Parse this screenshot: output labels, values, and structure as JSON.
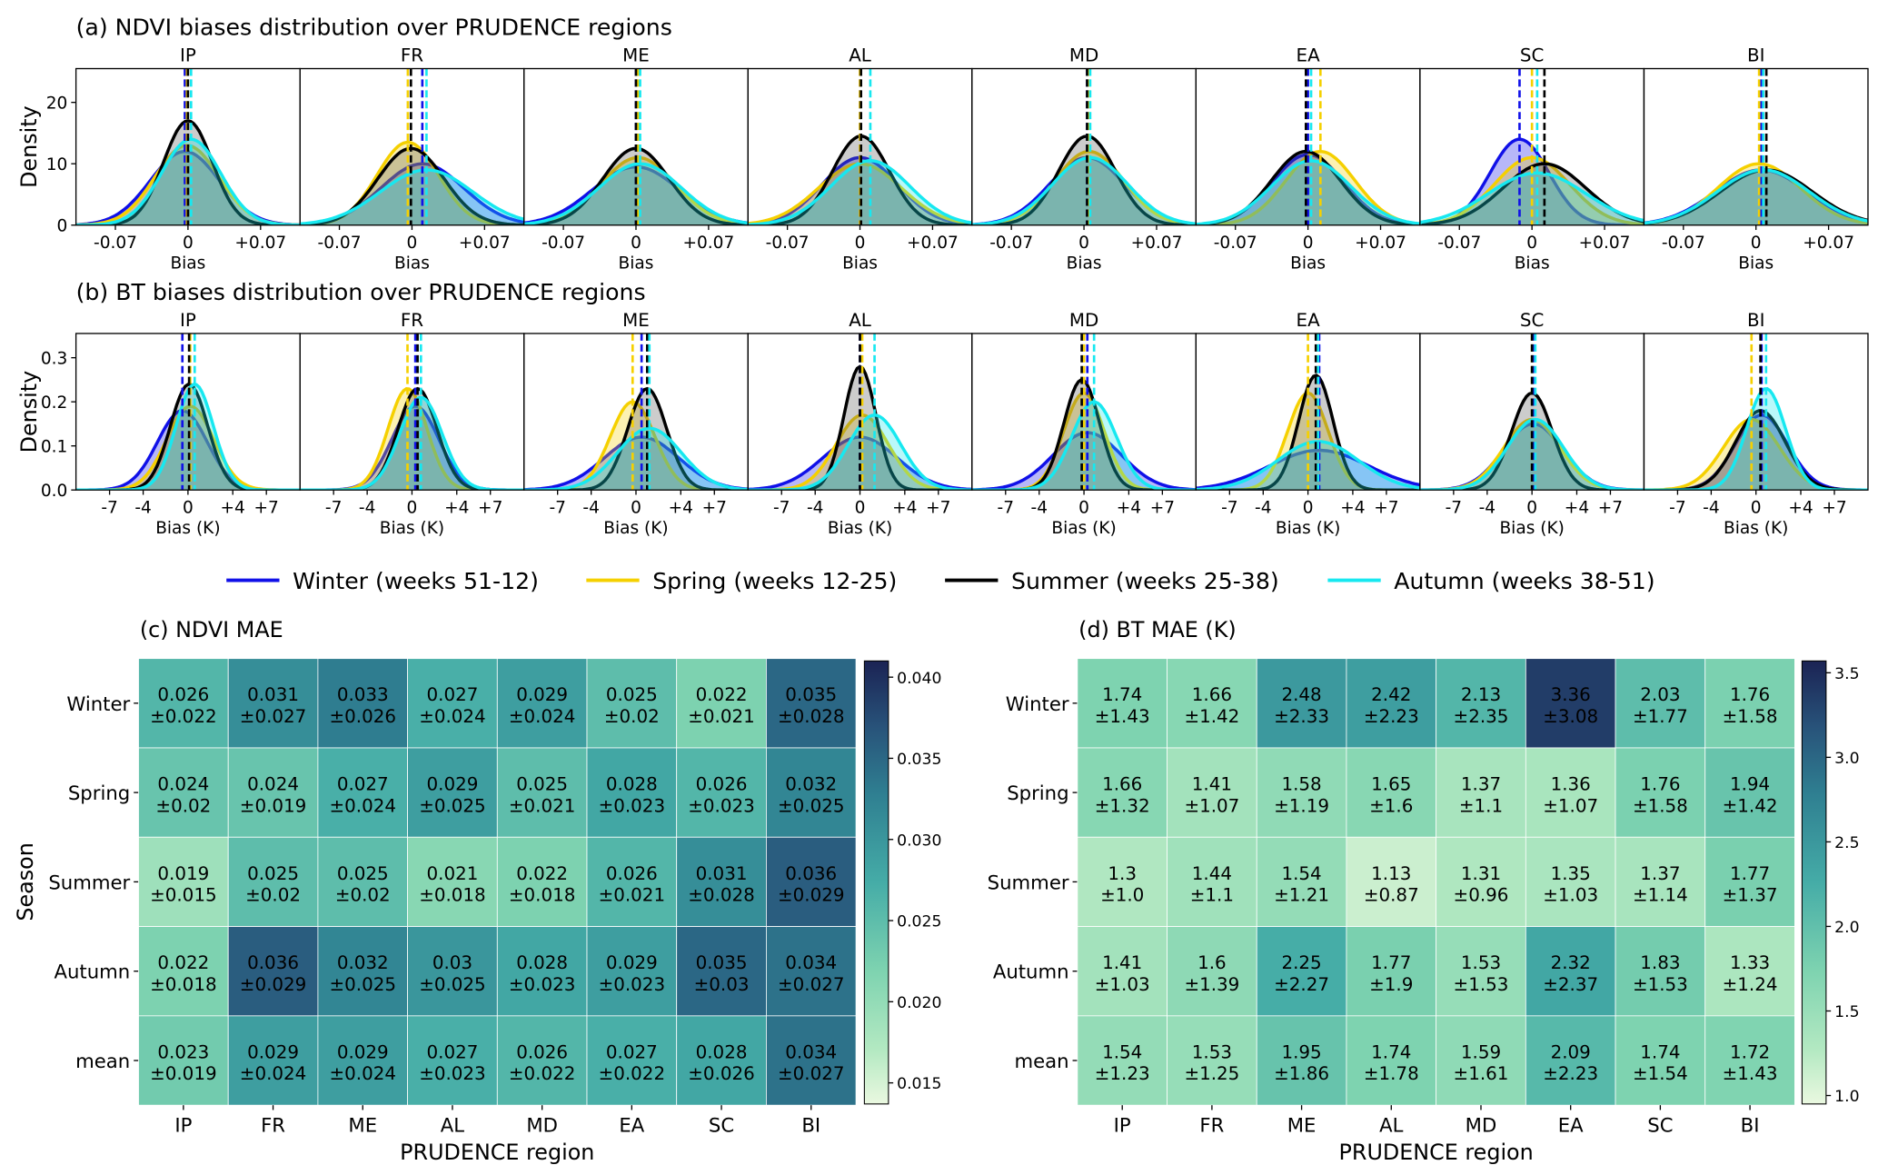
{
  "legend": [
    {
      "label": "Winter (weeks 51-12)",
      "color": "#1010e8"
    },
    {
      "label": "Spring (weeks 12-25)",
      "color": "#f5d000"
    },
    {
      "label": "Summer (weeks 25-38)",
      "color": "#000000"
    },
    {
      "label": "Autumn (weeks 38-51)",
      "color": "#17e8f0"
    }
  ],
  "chart_data": [
    {
      "type": "area",
      "title": "(a) NDVI biases distribution over PRUDENCE regions",
      "xlabel": "Bias",
      "ylabel": "Density",
      "xlim": [
        -0.108,
        0.108
      ],
      "ylim": [
        0,
        25.5
      ],
      "xticks": [
        -0.07,
        0,
        0.07
      ],
      "xtick_labels": [
        "-0.07",
        "0",
        "+0.07"
      ],
      "yticks": [
        0,
        10,
        20
      ],
      "ytick_labels": [
        "0",
        "10",
        "20"
      ],
      "regions": [
        "IP",
        "FR",
        "ME",
        "AL",
        "MD",
        "EA",
        "SC",
        "BI"
      ],
      "series": [
        {
          "name": "Winter",
          "mean": [
            -0.003,
            0.01,
            0.0,
            0.0,
            0.003,
            0.0,
            -0.012,
            0.005
          ],
          "peak": [
            12,
            10,
            9.5,
            11,
            11,
            11.5,
            14,
            9
          ]
        },
        {
          "name": "Spring",
          "mean": [
            -0.001,
            -0.004,
            0.002,
            0.0,
            0.005,
            0.012,
            0.0,
            0.003
          ],
          "peak": [
            13,
            13.5,
            11,
            10,
            12,
            12,
            11,
            10
          ]
        },
        {
          "name": "Summer",
          "mean": [
            0.0,
            -0.001,
            0.0,
            0.001,
            0.003,
            -0.002,
            0.012,
            0.01
          ],
          "peak": [
            17,
            12.5,
            12.5,
            14.5,
            14.5,
            12,
            10,
            9
          ]
        },
        {
          "name": "Autumn",
          "mean": [
            0.003,
            0.014,
            0.004,
            0.01,
            0.006,
            0.003,
            0.005,
            0.007
          ],
          "peak": [
            14,
            9,
            10,
            10.5,
            11,
            10.5,
            8.5,
            9
          ]
        }
      ]
    },
    {
      "type": "area",
      "title": "(b) BT biases distribution over PRUDENCE regions",
      "xlabel": "Bias (K)",
      "ylabel": "Density",
      "xlim": [
        -10,
        10
      ],
      "ylim": [
        0,
        0.355
      ],
      "xticks": [
        -7,
        -4,
        0,
        4,
        7
      ],
      "xtick_labels": [
        "-7",
        "-4",
        "0",
        "+4",
        "+7"
      ],
      "yticks": [
        0,
        0.1,
        0.2,
        0.3
      ],
      "ytick_labels": [
        "0.0",
        "0.1",
        "0.2",
        "0.3"
      ],
      "regions": [
        "IP",
        "FR",
        "ME",
        "AL",
        "MD",
        "EA",
        "SC",
        "BI"
      ],
      "series": [
        {
          "name": "Winter",
          "mean": [
            -0.5,
            0.3,
            0.5,
            0.0,
            0.3,
            1.0,
            0.1,
            0.5
          ],
          "peak": [
            0.18,
            0.19,
            0.12,
            0.12,
            0.13,
            0.09,
            0.15,
            0.17
          ]
        },
        {
          "name": "Spring",
          "mean": [
            0.2,
            -0.4,
            -0.3,
            0.2,
            0.0,
            0.0,
            0.0,
            -0.4
          ],
          "peak": [
            0.19,
            0.23,
            0.2,
            0.17,
            0.22,
            0.22,
            0.16,
            0.16
          ]
        },
        {
          "name": "Summer",
          "mean": [
            0.1,
            0.5,
            1.0,
            0.0,
            -0.2,
            0.7,
            0.0,
            0.4
          ],
          "peak": [
            0.24,
            0.23,
            0.23,
            0.28,
            0.25,
            0.26,
            0.22,
            0.18
          ]
        },
        {
          "name": "Autumn",
          "mean": [
            0.6,
            0.8,
            1.2,
            1.3,
            0.9,
            0.9,
            0.3,
            0.9
          ],
          "peak": [
            0.24,
            0.21,
            0.14,
            0.17,
            0.2,
            0.11,
            0.16,
            0.23
          ]
        }
      ]
    },
    {
      "type": "heatmap",
      "title": "(c) NDVI MAE",
      "xlabel": "PRUDENCE region",
      "ylabel": "Season",
      "rows": [
        "Winter",
        "Spring",
        "Summer",
        "Autumn",
        "mean"
      ],
      "cols": [
        "IP",
        "FR",
        "ME",
        "AL",
        "MD",
        "EA",
        "SC",
        "BI"
      ],
      "vmin": 0.0137,
      "vmax": 0.041,
      "cbar_ticks": [
        "0.015",
        "0.020",
        "0.025",
        "0.030",
        "0.035",
        "0.040"
      ],
      "values": [
        [
          "0.026",
          "0.031",
          "0.033",
          "0.027",
          "0.029",
          "0.025",
          "0.022",
          "0.035"
        ],
        [
          "0.024",
          "0.024",
          "0.027",
          "0.029",
          "0.025",
          "0.028",
          "0.026",
          "0.032"
        ],
        [
          "0.019",
          "0.025",
          "0.025",
          "0.021",
          "0.022",
          "0.026",
          "0.031",
          "0.036"
        ],
        [
          "0.022",
          "0.036",
          "0.032",
          "0.03",
          "0.028",
          "0.029",
          "0.035",
          "0.034"
        ],
        [
          "0.023",
          "0.029",
          "0.029",
          "0.027",
          "0.026",
          "0.027",
          "0.028",
          "0.034"
        ]
      ],
      "stds": [
        [
          "±0.022",
          "±0.027",
          "±0.026",
          "±0.024",
          "±0.024",
          "±0.02",
          "±0.021",
          "±0.028"
        ],
        [
          "±0.02",
          "±0.019",
          "±0.024",
          "±0.025",
          "±0.021",
          "±0.023",
          "±0.023",
          "±0.025"
        ],
        [
          "±0.015",
          "±0.02",
          "±0.02",
          "±0.018",
          "±0.018",
          "±0.021",
          "±0.028",
          "±0.029"
        ],
        [
          "±0.018",
          "±0.029",
          "±0.025",
          "±0.025",
          "±0.023",
          "±0.023",
          "±0.03",
          "±0.027"
        ],
        [
          "±0.019",
          "±0.024",
          "±0.024",
          "±0.023",
          "±0.022",
          "±0.022",
          "±0.026",
          "±0.027"
        ]
      ]
    },
    {
      "type": "heatmap",
      "title": "(d) BT MAE (K)",
      "xlabel": "PRUDENCE region",
      "ylabel": "",
      "rows": [
        "Winter",
        "Spring",
        "Summer",
        "Autumn",
        "mean"
      ],
      "cols": [
        "IP",
        "FR",
        "ME",
        "AL",
        "MD",
        "EA",
        "SC",
        "BI"
      ],
      "vmin": 0.95,
      "vmax": 3.57,
      "cbar_ticks": [
        "1.0",
        "1.5",
        "2.0",
        "2.5",
        "3.0",
        "3.5"
      ],
      "values": [
        [
          "1.74",
          "1.66",
          "2.48",
          "2.42",
          "2.13",
          "3.36",
          "2.03",
          "1.76"
        ],
        [
          "1.66",
          "1.41",
          "1.58",
          "1.65",
          "1.37",
          "1.36",
          "1.76",
          "1.94"
        ],
        [
          "1.3",
          "1.44",
          "1.54",
          "1.13",
          "1.31",
          "1.35",
          "1.37",
          "1.77"
        ],
        [
          "1.41",
          "1.6",
          "2.25",
          "1.77",
          "1.53",
          "2.32",
          "1.83",
          "1.33"
        ],
        [
          "1.54",
          "1.53",
          "1.95",
          "1.74",
          "1.59",
          "2.09",
          "1.74",
          "1.72"
        ]
      ],
      "stds": [
        [
          "±1.43",
          "±1.42",
          "±2.33",
          "±2.23",
          "±2.35",
          "±3.08",
          "±1.77",
          "±1.58"
        ],
        [
          "±1.32",
          "±1.07",
          "±1.19",
          "±1.6",
          "±1.1",
          "±1.07",
          "±1.58",
          "±1.42"
        ],
        [
          "±1.0",
          "±1.1",
          "±1.21",
          "±0.87",
          "±0.96",
          "±1.03",
          "±1.14",
          "±1.37"
        ],
        [
          "±1.03",
          "±1.39",
          "±2.27",
          "±1.9",
          "±1.53",
          "±2.37",
          "±1.53",
          "±1.24"
        ],
        [
          "±1.23",
          "±1.25",
          "±1.86",
          "±1.78",
          "±1.61",
          "±2.23",
          "±1.54",
          "±1.43"
        ]
      ]
    }
  ]
}
